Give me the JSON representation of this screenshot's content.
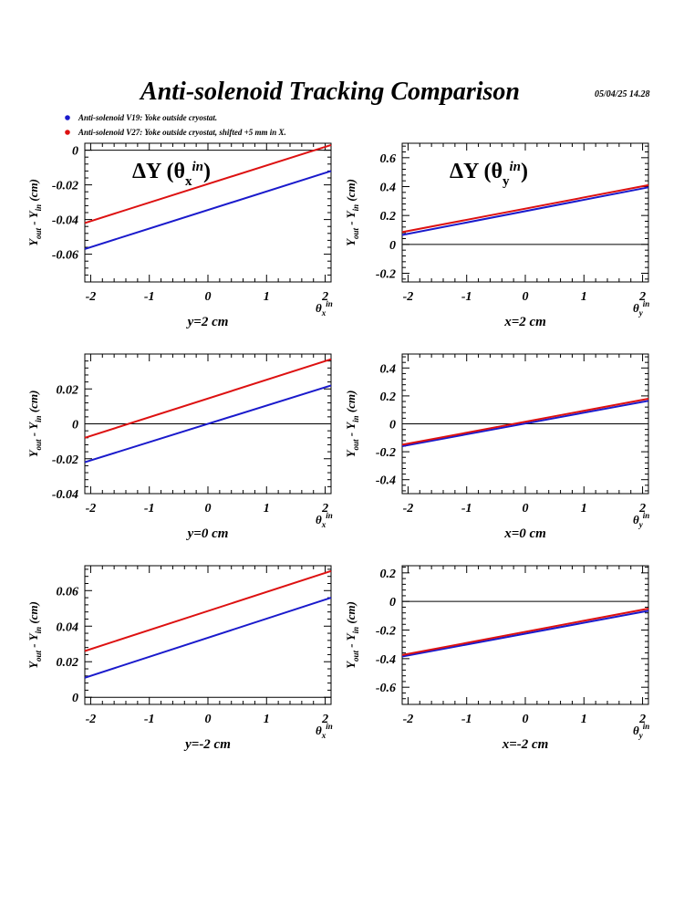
{
  "header": {
    "title": "Anti-solenoid Tracking Comparison",
    "timestamp": "05/04/25  14.28"
  },
  "legend": [
    {
      "label": "Anti-solenoid V19: Yoke outside cryostat.",
      "color": "#1a1acc"
    },
    {
      "label": "Anti-solenoid V27: Yoke outside cryostat, shifted +5 mm in X.",
      "color": "#dd1111"
    }
  ],
  "ylabel": {
    "main": "Y",
    "sub1": "out",
    "mid": " - Y",
    "sub2": "in",
    "tail": " (cm)"
  },
  "chart_data": [
    {
      "type": "line",
      "annotation": {
        "delta": "ΔY (",
        "theta": "θ",
        "sub": "x",
        "sup": "in",
        "close": ")"
      },
      "xaxis": {
        "sym": "θ",
        "sub": "x",
        "sup": "in"
      },
      "xlabel": "y=2 cm",
      "xlim": [
        -2.1,
        2.1
      ],
      "ylim": [
        -0.076,
        0.004
      ],
      "xticks": [
        -2,
        -1,
        0,
        1,
        2
      ],
      "yticks": [
        0,
        -0.02,
        -0.04,
        -0.06
      ],
      "ytick_labels": [
        "0",
        "-0.02",
        "-0.04",
        "-0.06"
      ],
      "series": [
        {
          "color": "#1a1acc",
          "x": [
            -2.1,
            2.1
          ],
          "y": [
            -0.057,
            -0.012
          ]
        },
        {
          "color": "#dd1111",
          "x": [
            -2.1,
            2.1
          ],
          "y": [
            -0.042,
            0.003
          ]
        }
      ]
    },
    {
      "type": "line",
      "annotation": {
        "delta": "ΔY (",
        "theta": "θ",
        "sub": "y",
        "sup": "in",
        "close": ")"
      },
      "xaxis": {
        "sym": "θ",
        "sub": "y",
        "sup": "in"
      },
      "xlabel": "x=2 cm",
      "xlim": [
        -2.1,
        2.1
      ],
      "ylim": [
        -0.26,
        0.7
      ],
      "xticks": [
        -2,
        -1,
        0,
        1,
        2
      ],
      "yticks": [
        0.6,
        0.4,
        0.2,
        0,
        -0.2
      ],
      "ytick_labels": [
        "0.6",
        "0.4",
        "0.2",
        "0",
        "-0.2"
      ],
      "series": [
        {
          "color": "#1a1acc",
          "x": [
            -2.1,
            2.1
          ],
          "y": [
            0.065,
            0.395
          ]
        },
        {
          "color": "#dd1111",
          "x": [
            -2.1,
            2.1
          ],
          "y": [
            0.085,
            0.41
          ]
        }
      ]
    },
    {
      "type": "line",
      "xaxis": {
        "sym": "θ",
        "sub": "x",
        "sup": "in"
      },
      "xlabel": "y=0 cm",
      "xlim": [
        -2.1,
        2.1
      ],
      "ylim": [
        -0.04,
        0.04
      ],
      "xticks": [
        -2,
        -1,
        0,
        1,
        2
      ],
      "yticks": [
        0.02,
        0,
        -0.02,
        -0.04
      ],
      "ytick_labels": [
        "0.02",
        "0",
        "-0.02",
        "-0.04"
      ],
      "series": [
        {
          "color": "#1a1acc",
          "x": [
            -2.1,
            2.1
          ],
          "y": [
            -0.022,
            0.022
          ]
        },
        {
          "color": "#dd1111",
          "x": [
            -2.1,
            2.1
          ],
          "y": [
            -0.008,
            0.037
          ]
        }
      ]
    },
    {
      "type": "line",
      "xaxis": {
        "sym": "θ",
        "sub": "y",
        "sup": "in"
      },
      "xlabel": "x=0 cm",
      "xlim": [
        -2.1,
        2.1
      ],
      "ylim": [
        -0.5,
        0.5
      ],
      "xticks": [
        -2,
        -1,
        0,
        1,
        2
      ],
      "yticks": [
        0.4,
        0.2,
        0,
        -0.2,
        -0.4
      ],
      "ytick_labels": [
        "0.4",
        "0.2",
        "0",
        "-0.2",
        "-0.4"
      ],
      "series": [
        {
          "color": "#1a1acc",
          "x": [
            -2.1,
            2.1
          ],
          "y": [
            -0.16,
            0.165
          ]
        },
        {
          "color": "#dd1111",
          "x": [
            -2.1,
            2.1
          ],
          "y": [
            -0.15,
            0.18
          ]
        }
      ]
    },
    {
      "type": "line",
      "xaxis": {
        "sym": "θ",
        "sub": "x",
        "sup": "in"
      },
      "xlabel": "y=-2 cm",
      "xlim": [
        -2.1,
        2.1
      ],
      "ylim": [
        -0.004,
        0.074
      ],
      "xticks": [
        -2,
        -1,
        0,
        1,
        2
      ],
      "yticks": [
        0.06,
        0.04,
        0.02,
        0
      ],
      "ytick_labels": [
        "0.06",
        "0.04",
        "0.02",
        "0"
      ],
      "series": [
        {
          "color": "#1a1acc",
          "x": [
            -2.1,
            2.1
          ],
          "y": [
            0.011,
            0.056
          ]
        },
        {
          "color": "#dd1111",
          "x": [
            -2.1,
            2.1
          ],
          "y": [
            0.026,
            0.071
          ]
        }
      ]
    },
    {
      "type": "line",
      "xaxis": {
        "sym": "θ",
        "sub": "y",
        "sup": "in"
      },
      "xlabel": "x=-2 cm",
      "xlim": [
        -2.1,
        2.1
      ],
      "ylim": [
        -0.72,
        0.25
      ],
      "xticks": [
        -2,
        -1,
        0,
        1,
        2
      ],
      "yticks": [
        0.2,
        0,
        -0.2,
        -0.4,
        -0.6
      ],
      "ytick_labels": [
        "0.2",
        "0",
        "-0.2",
        "-0.4",
        "-0.6"
      ],
      "series": [
        {
          "color": "#1a1acc",
          "x": [
            -2.1,
            2.1
          ],
          "y": [
            -0.385,
            -0.065
          ]
        },
        {
          "color": "#dd1111",
          "x": [
            -2.1,
            2.1
          ],
          "y": [
            -0.375,
            -0.05
          ]
        }
      ]
    }
  ]
}
